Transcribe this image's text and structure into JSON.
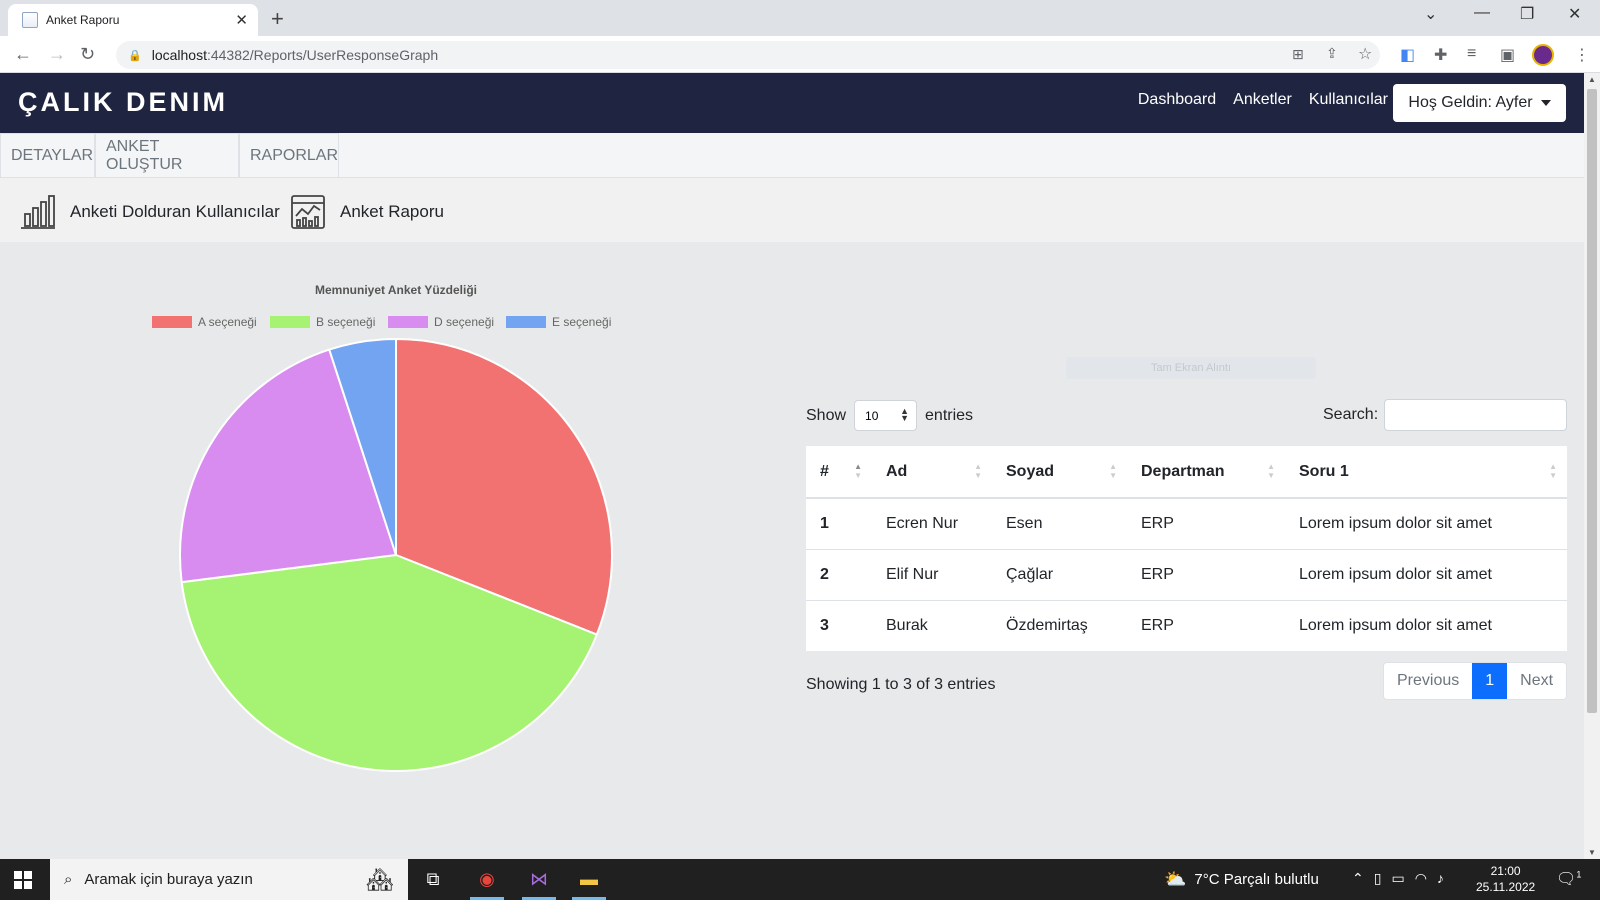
{
  "browser": {
    "tab_title": "Anket Raporu",
    "url_host": "localhost",
    "url_path": ":44382/Reports/UserResponseGraph"
  },
  "navbar": {
    "brand": "ÇALIK DENIM",
    "links": [
      "Dashboard",
      "Anketler",
      "Kullanıcılar"
    ],
    "welcome": "Hoş Geldin: Ayfer"
  },
  "subnav": {
    "tabs": [
      "DETAYLAR",
      "ANKET OLUŞTUR",
      "RAPORLAR"
    ]
  },
  "reports": {
    "links": [
      "Anketi Dolduran Kullanıcılar",
      "Anket Raporu"
    ]
  },
  "chart_data": {
    "type": "pie",
    "title": "Memnuniyet Anket Yüzdeliği",
    "categories": [
      "A seçeneği",
      "B seçeneği",
      "D seçeneği",
      "E seçeneği"
    ],
    "values": [
      31,
      42,
      22,
      5
    ],
    "colors": [
      "#f27272",
      "#a6f272",
      "#d98cef",
      "#72a4f2"
    ],
    "legend": "top"
  },
  "ghost_text": "Tam Ekran Alıntı",
  "table": {
    "show_label": "Show",
    "entries_label": "entries",
    "page_length": "10",
    "search_label": "Search:",
    "columns": [
      "#",
      "Ad",
      "Soyad",
      "Departman",
      "Soru 1"
    ],
    "rows": [
      [
        "1",
        "Ecren Nur",
        "Esen",
        "ERP",
        "Lorem ipsum dolor sit amet"
      ],
      [
        "2",
        "Elif Nur",
        "Çağlar",
        "ERP",
        "Lorem ipsum dolor sit amet"
      ],
      [
        "3",
        "Burak",
        "Özdemirtaş",
        "ERP",
        "Lorem ipsum dolor sit amet"
      ]
    ],
    "info": "Showing 1 to 3 of 3 entries",
    "pager": {
      "previous": "Previous",
      "current": "1",
      "next": "Next"
    }
  },
  "taskbar": {
    "search_placeholder": "Aramak için buraya yazın",
    "weather": "7°C  Parçalı bulutlu",
    "time": "21:00",
    "date": "25.11.2022",
    "notifications": "1"
  }
}
